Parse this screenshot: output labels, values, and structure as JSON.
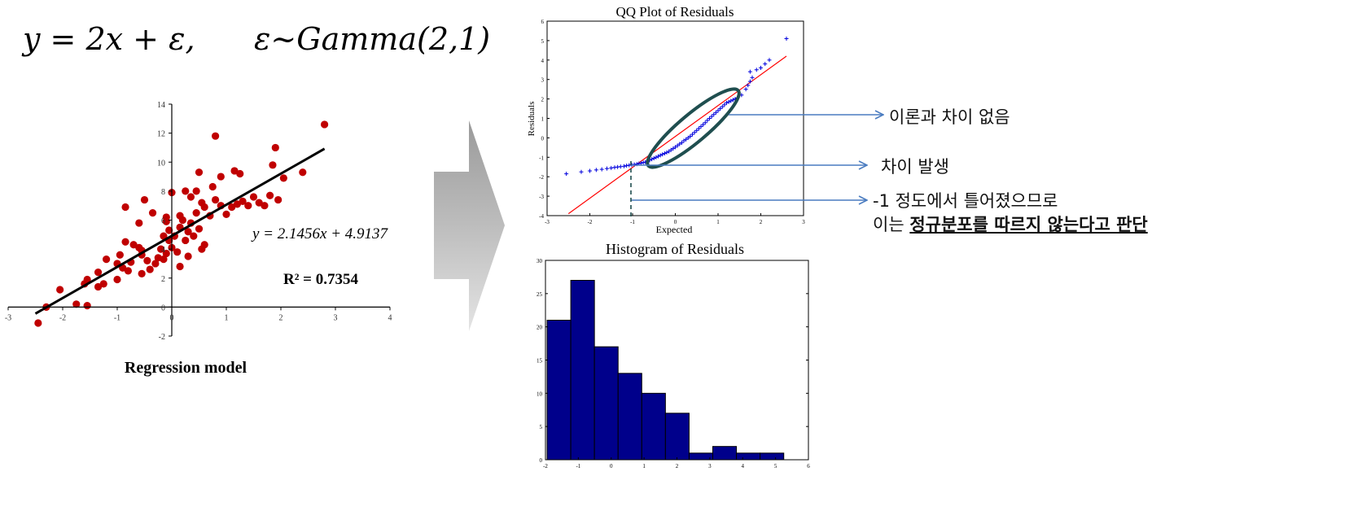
{
  "equation": {
    "lhs": "y = 2x + ε,",
    "rhs": "ε~Gamma(2,1)"
  },
  "annotations": {
    "a1": "이론과 차이 없음",
    "a2": "차이 발생",
    "a3_line1": "-1 정도에서 틀어졌으므로",
    "a3_line2_prefix": "이는 ",
    "a3_line2_bold": "정규분포를 따르지 않는다고 판단"
  },
  "colors": {
    "scatter": "#c00000",
    "qq_points": "#0000dd",
    "ref_line": "#ff0000",
    "ellipse": "#1f4e4f",
    "arrow": "#4a7cc0",
    "hist_fill": "#00008b"
  },
  "chart_data": [
    {
      "type": "scatter",
      "title": "Regression model",
      "xlim": [
        -3,
        4
      ],
      "ylim": [
        -2,
        14
      ],
      "xticks": [
        -3,
        -2,
        -1,
        0,
        1,
        2,
        3,
        4
      ],
      "yticks": [
        -2,
        0,
        2,
        4,
        6,
        8,
        10,
        12,
        14
      ],
      "fit_label": "y = 2.1456x + 4.9137",
      "r2_label": "R² = 0.7354",
      "fit": {
        "slope": 2.1456,
        "intercept": 4.9137,
        "x_range": [
          -2.5,
          2.8
        ]
      },
      "points": [
        [
          -2.45,
          -1.1
        ],
        [
          -2.3,
          0.0
        ],
        [
          -2.05,
          1.2
        ],
        [
          -1.75,
          0.2
        ],
        [
          -1.55,
          0.1
        ],
        [
          -1.6,
          1.6
        ],
        [
          -1.55,
          1.9
        ],
        [
          -1.35,
          1.4
        ],
        [
          -1.25,
          1.6
        ],
        [
          -1.35,
          2.4
        ],
        [
          -1.0,
          1.9
        ],
        [
          -0.95,
          3.6
        ],
        [
          -0.9,
          2.7
        ],
        [
          -0.8,
          2.5
        ],
        [
          -0.75,
          3.1
        ],
        [
          -0.7,
          4.3
        ],
        [
          -0.85,
          4.5
        ],
        [
          -0.6,
          4.1
        ],
        [
          -0.55,
          3.6
        ],
        [
          -0.55,
          2.3
        ],
        [
          -0.45,
          3.2
        ],
        [
          -0.4,
          2.6
        ],
        [
          -0.3,
          3.0
        ],
        [
          -0.25,
          3.4
        ],
        [
          -0.2,
          4.0
        ],
        [
          -0.15,
          3.3
        ],
        [
          -0.1,
          3.7
        ],
        [
          -0.05,
          4.6
        ],
        [
          0.0,
          4.1
        ],
        [
          0.05,
          4.9
        ],
        [
          0.1,
          3.8
        ],
        [
          0.15,
          5.5
        ],
        [
          0.2,
          6.0
        ],
        [
          0.25,
          4.6
        ],
        [
          0.3,
          5.2
        ],
        [
          0.35,
          5.8
        ],
        [
          0.4,
          4.9
        ],
        [
          0.45,
          6.5
        ],
        [
          0.5,
          5.4
        ],
        [
          0.55,
          7.2
        ],
        [
          0.6,
          6.9
        ],
        [
          0.7,
          6.3
        ],
        [
          0.8,
          7.4
        ],
        [
          0.9,
          7.0
        ],
        [
          1.0,
          6.4
        ],
        [
          1.1,
          6.9
        ],
        [
          1.2,
          7.1
        ],
        [
          1.3,
          7.3
        ],
        [
          1.4,
          7.0
        ],
        [
          1.5,
          7.6
        ],
        [
          1.6,
          7.2
        ],
        [
          1.7,
          7.0
        ],
        [
          1.8,
          7.7
        ],
        [
          1.95,
          7.4
        ],
        [
          2.05,
          8.9
        ],
        [
          2.4,
          9.3
        ],
        [
          1.85,
          9.8
        ],
        [
          1.9,
          11.0
        ],
        [
          2.8,
          12.6
        ],
        [
          0.8,
          11.8
        ],
        [
          0.5,
          9.3
        ],
        [
          0.9,
          9.0
        ],
        [
          1.15,
          9.4
        ],
        [
          1.25,
          9.2
        ],
        [
          0.75,
          8.3
        ],
        [
          0.45,
          8.0
        ],
        [
          0.25,
          8.0
        ],
        [
          0.0,
          7.9
        ],
        [
          -0.5,
          7.4
        ],
        [
          -0.85,
          6.9
        ],
        [
          -0.6,
          5.8
        ],
        [
          -0.35,
          6.5
        ],
        [
          -0.1,
          5.9
        ],
        [
          -0.1,
          6.2
        ],
        [
          -0.05,
          5.3
        ],
        [
          0.15,
          2.8
        ],
        [
          0.3,
          3.5
        ],
        [
          0.55,
          4.0
        ],
        [
          0.6,
          4.3
        ],
        [
          -0.15,
          4.9
        ],
        [
          -1.0,
          3.0
        ],
        [
          -1.2,
          3.3
        ],
        [
          0.15,
          6.3
        ],
        [
          0.35,
          7.6
        ],
        [
          -0.55,
          3.9
        ]
      ]
    },
    {
      "type": "scatter",
      "title": "QQ Plot of Residuals",
      "xlabel": "Expected",
      "ylabel": "Residuals",
      "xlim": [
        -3,
        3
      ],
      "ylim": [
        -4,
        6
      ],
      "xticks": [
        -3,
        -2,
        -1,
        0,
        1,
        2,
        3
      ],
      "yticks": [
        -4,
        -3,
        -2,
        -1,
        0,
        1,
        2,
        3,
        4,
        5,
        6
      ],
      "ref_line": {
        "x": [
          -2.5,
          2.6
        ],
        "y": [
          -3.9,
          4.2
        ]
      },
      "points": [
        [
          -2.55,
          -1.85
        ],
        [
          -2.2,
          -1.75
        ],
        [
          -2.0,
          -1.7
        ],
        [
          -1.85,
          -1.65
        ],
        [
          -1.72,
          -1.62
        ],
        [
          -1.6,
          -1.58
        ],
        [
          -1.5,
          -1.55
        ],
        [
          -1.42,
          -1.52
        ],
        [
          -1.35,
          -1.5
        ],
        [
          -1.28,
          -1.48
        ],
        [
          -1.2,
          -1.46
        ],
        [
          -1.14,
          -1.43
        ],
        [
          -1.08,
          -1.41
        ],
        [
          -1.02,
          -1.39
        ],
        [
          -0.96,
          -1.37
        ],
        [
          -0.9,
          -1.35
        ],
        [
          -0.85,
          -1.32
        ],
        [
          -0.8,
          -1.3
        ],
        [
          -0.75,
          -1.27
        ],
        [
          -0.7,
          -1.25
        ],
        [
          -0.65,
          -1.2
        ],
        [
          -0.6,
          -1.15
        ],
        [
          -0.55,
          -1.1
        ],
        [
          -0.5,
          -1.05
        ],
        [
          -0.45,
          -1.0
        ],
        [
          -0.4,
          -0.95
        ],
        [
          -0.35,
          -0.9
        ],
        [
          -0.3,
          -0.85
        ],
        [
          -0.25,
          -0.8
        ],
        [
          -0.2,
          -0.75
        ],
        [
          -0.15,
          -0.7
        ],
        [
          -0.1,
          -0.62
        ],
        [
          -0.05,
          -0.55
        ],
        [
          0.0,
          -0.48
        ],
        [
          0.05,
          -0.4
        ],
        [
          0.1,
          -0.32
        ],
        [
          0.15,
          -0.25
        ],
        [
          0.2,
          -0.15
        ],
        [
          0.25,
          -0.08
        ],
        [
          0.3,
          0.0
        ],
        [
          0.35,
          0.08
        ],
        [
          0.4,
          0.18
        ],
        [
          0.45,
          0.28
        ],
        [
          0.5,
          0.38
        ],
        [
          0.55,
          0.48
        ],
        [
          0.6,
          0.58
        ],
        [
          0.65,
          0.68
        ],
        [
          0.7,
          0.78
        ],
        [
          0.75,
          0.9
        ],
        [
          0.8,
          1.0
        ],
        [
          0.85,
          1.1
        ],
        [
          0.9,
          1.2
        ],
        [
          0.95,
          1.3
        ],
        [
          1.0,
          1.4
        ],
        [
          1.05,
          1.5
        ],
        [
          1.1,
          1.6
        ],
        [
          1.15,
          1.7
        ],
        [
          1.2,
          1.8
        ],
        [
          1.25,
          1.85
        ],
        [
          1.3,
          1.9
        ],
        [
          1.35,
          1.95
        ],
        [
          1.4,
          2.0
        ],
        [
          1.45,
          2.05
        ],
        [
          1.55,
          2.2
        ],
        [
          1.65,
          2.5
        ],
        [
          1.7,
          2.7
        ],
        [
          1.75,
          2.9
        ],
        [
          1.8,
          3.1
        ],
        [
          1.75,
          3.4
        ],
        [
          1.9,
          3.5
        ],
        [
          2.0,
          3.6
        ],
        [
          2.1,
          3.8
        ],
        [
          2.2,
          4.0
        ],
        [
          2.6,
          5.1
        ]
      ]
    },
    {
      "type": "bar",
      "title": "Histogram of Residuals",
      "xlim": [
        -2,
        6
      ],
      "ylim": [
        0,
        30
      ],
      "xticks": [
        -2,
        -1,
        0,
        1,
        2,
        3,
        4,
        5,
        6
      ],
      "yticks": [
        0,
        5,
        10,
        15,
        20,
        25,
        30
      ],
      "bin_start": -1.95,
      "bin_width": 0.72,
      "values": [
        21,
        27,
        17,
        13,
        10,
        7,
        1,
        2,
        1,
        1
      ]
    }
  ]
}
